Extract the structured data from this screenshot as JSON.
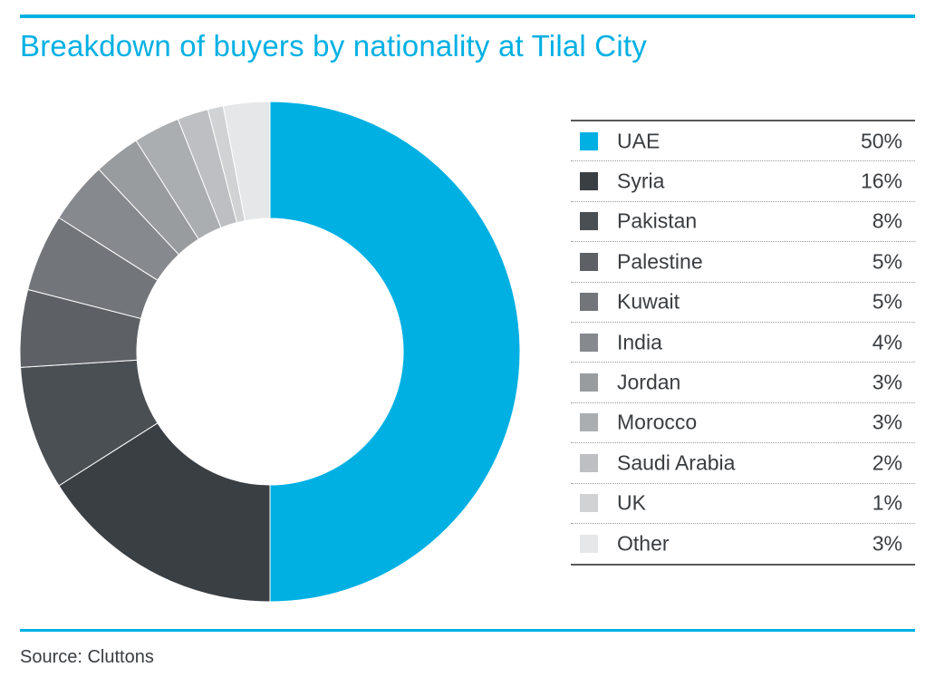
{
  "header": {
    "title": "Breakdown of buyers by nationality at Tilal City"
  },
  "footer": {
    "source": "Source: Cluttons"
  },
  "chart_data": {
    "type": "pie",
    "style": "donut",
    "title": "Breakdown of buyers by nationality at Tilal City",
    "legend_placement": "right",
    "unit": "%",
    "slices": [
      {
        "label": "UAE",
        "value": 50,
        "display": "50%",
        "color": "#00b0e3"
      },
      {
        "label": "Syria",
        "value": 16,
        "display": "16%",
        "color": "#3a3f44"
      },
      {
        "label": "Pakistan",
        "value": 8,
        "display": "8%",
        "color": "#4a4f53"
      },
      {
        "label": "Palestine",
        "value": 5,
        "display": "5%",
        "color": "#5d6166"
      },
      {
        "label": "Kuwait",
        "value": 5,
        "display": "5%",
        "color": "#72767a"
      },
      {
        "label": "India",
        "value": 4,
        "display": "4%",
        "color": "#86898d"
      },
      {
        "label": "Jordan",
        "value": 3,
        "display": "3%",
        "color": "#999c9f"
      },
      {
        "label": "Morocco",
        "value": 3,
        "display": "3%",
        "color": "#abaeb1"
      },
      {
        "label": "Saudi Arabia",
        "value": 2,
        "display": "2%",
        "color": "#bdbfc2"
      },
      {
        "label": "UK",
        "value": 1,
        "display": "1%",
        "color": "#d0d2d4"
      },
      {
        "label": "Other",
        "value": 3,
        "display": "3%",
        "color": "#e6e7e8"
      }
    ]
  }
}
